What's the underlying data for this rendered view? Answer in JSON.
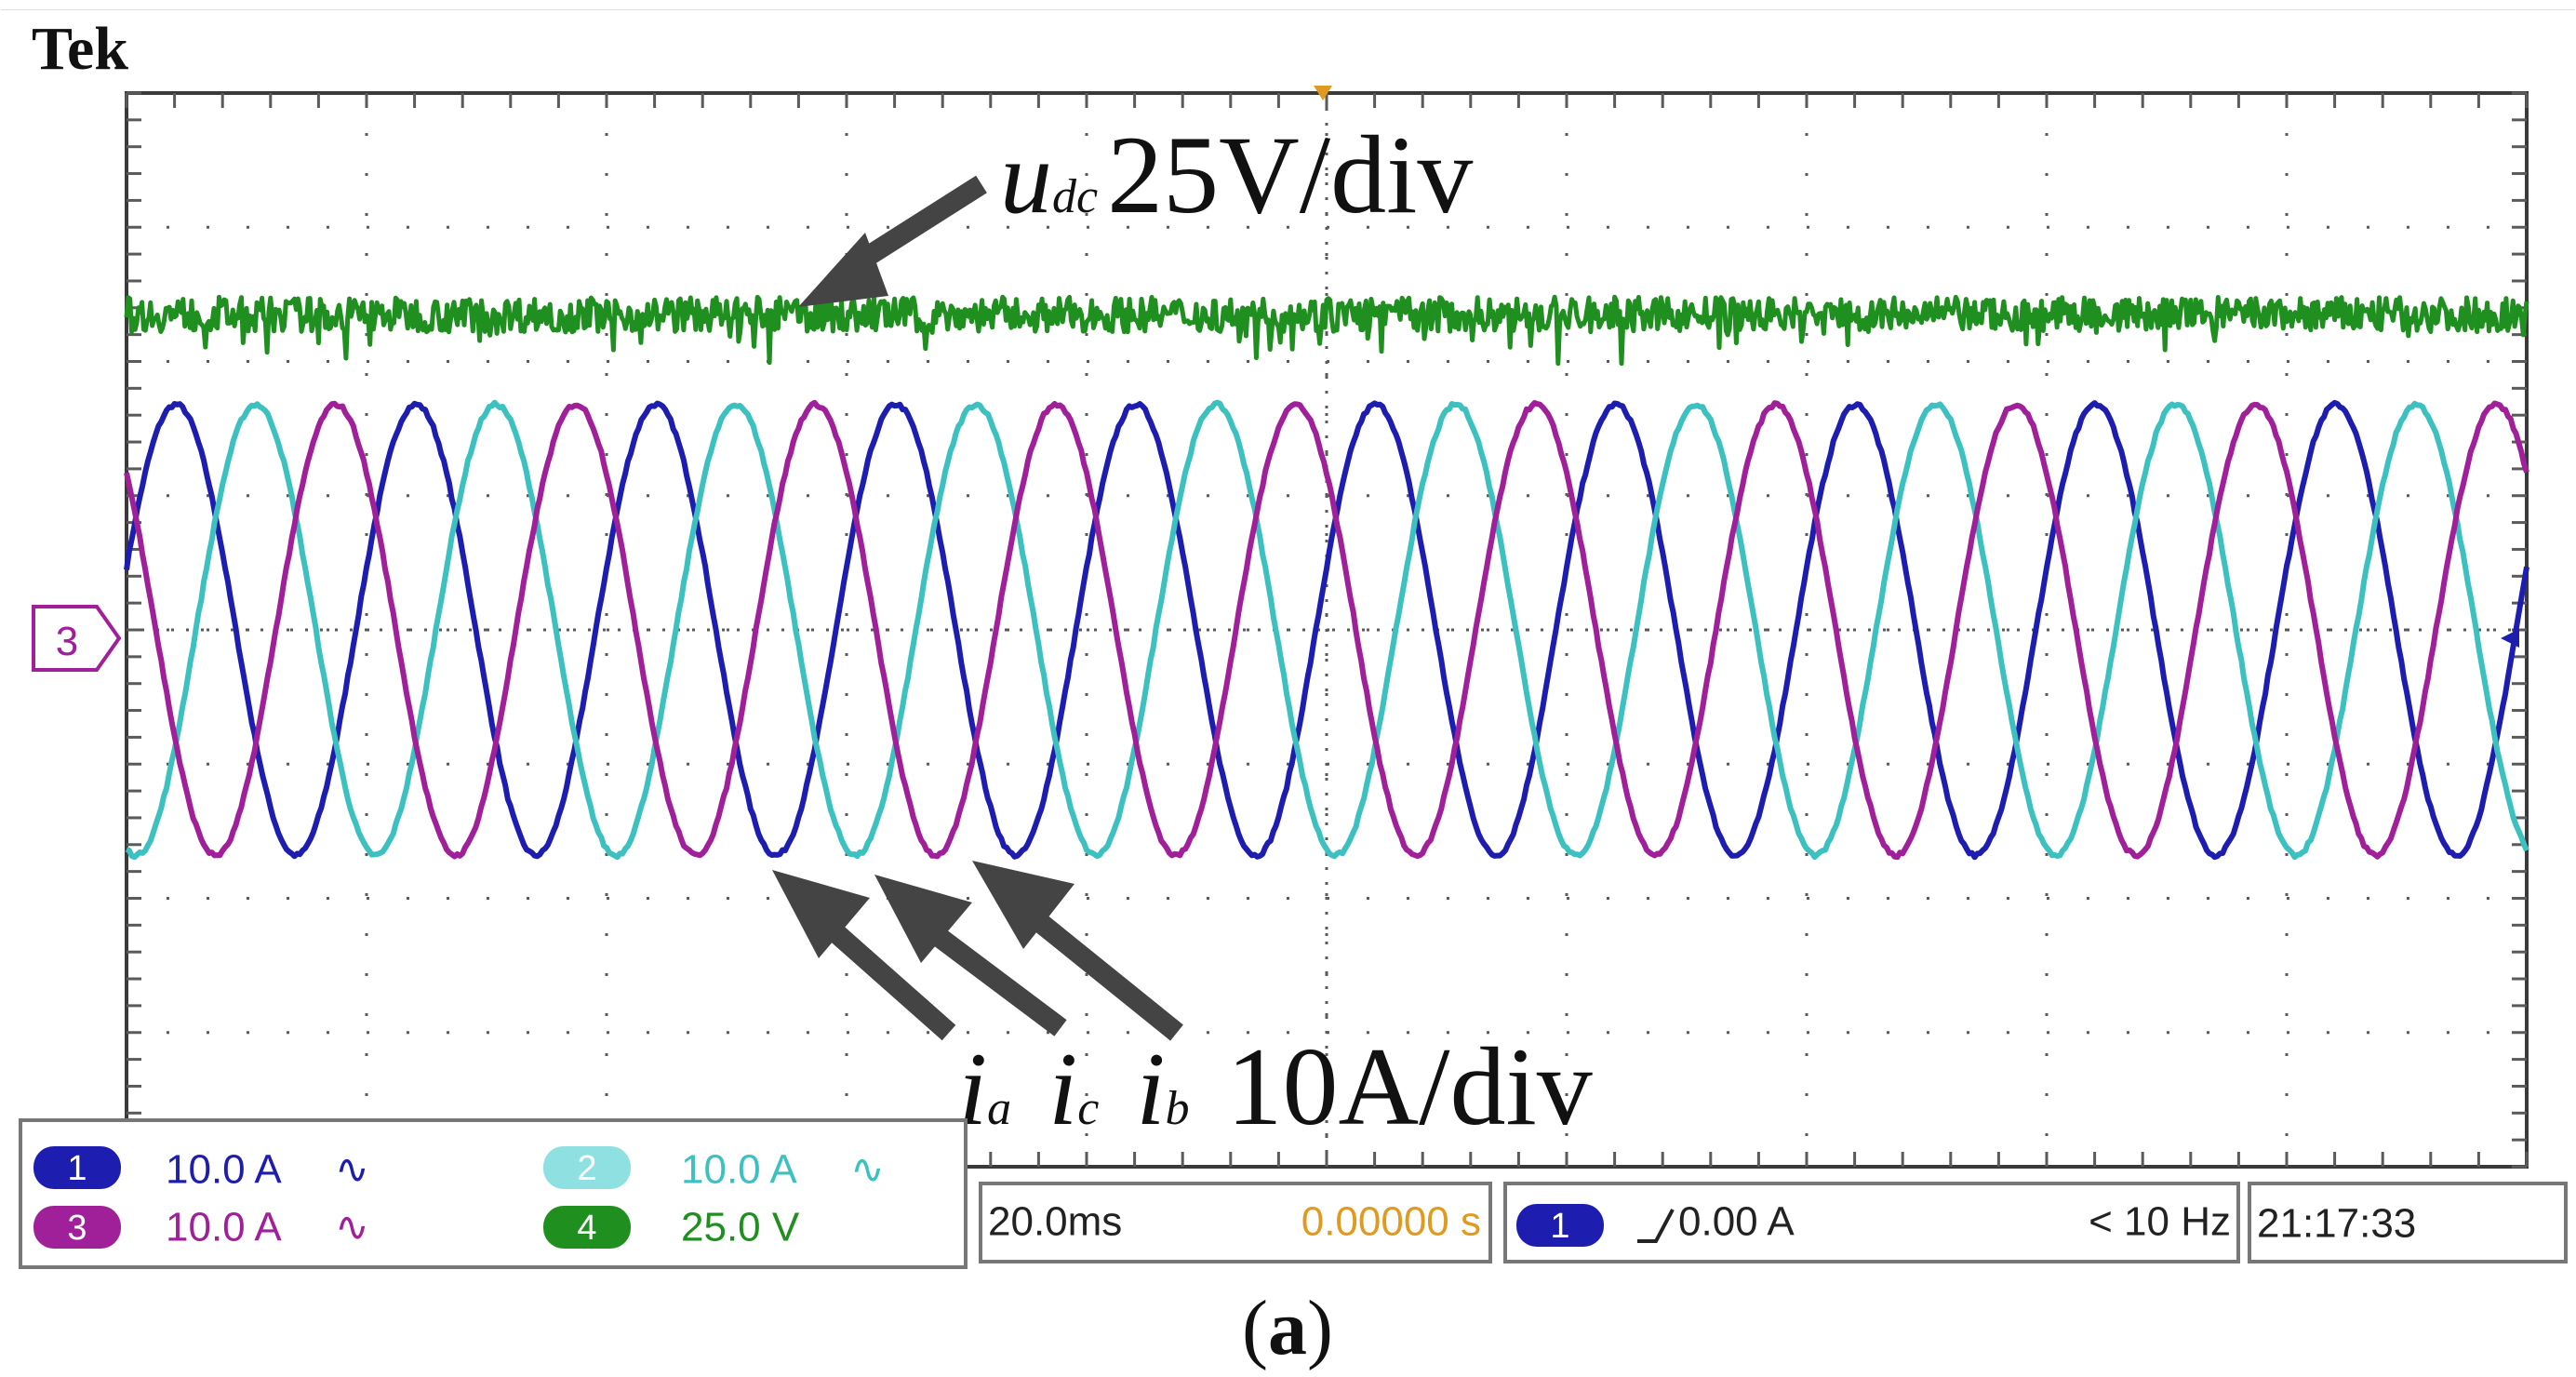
{
  "brand": "Tek",
  "figure_label": "a",
  "annotations": {
    "udc_symbol": "u",
    "udc_subscript": "dc",
    "udc_scale": "25V/div",
    "ia_symbol": "i",
    "ia_subscript": "a",
    "ic_symbol": "i",
    "ic_subscript": "c",
    "ib_symbol": "i",
    "ib_subscript": "b",
    "current_scale": "10A/div"
  },
  "ground_marker": "3",
  "channels": [
    {
      "number": "1",
      "scale": "10.0 A",
      "coupling": "∿",
      "color": "#1d1db0"
    },
    {
      "number": "2",
      "scale": "10.0 A",
      "coupling": "∿",
      "color": "#3cc0c0"
    },
    {
      "number": "3",
      "scale": "10.0 A",
      "coupling": "∿",
      "color": "#a0209a"
    },
    {
      "number": "4",
      "scale": "25.0 V",
      "coupling": "",
      "color": "#1f8f1f"
    }
  ],
  "timebase": {
    "time_per_div": "20.0ms",
    "position": "0.00000 s"
  },
  "trigger": {
    "channel": "1",
    "level": "0.00 A",
    "frequency": "< 10 Hz"
  },
  "clock": "21:17:33",
  "colors": {
    "grid": "#5a5a5a",
    "udc": "#1f8f1f",
    "ia": "#1d1db0",
    "ib": "#a0209a",
    "ic": "#3cc0c0",
    "arrow": "#444444",
    "time_position": "#e09a20",
    "panel_border": "#777777"
  },
  "chart_data": {
    "type": "line",
    "title": "",
    "xlabel": "",
    "ylabel": "",
    "x_divisions": 10,
    "y_divisions": 8,
    "time_per_div_ms": 20,
    "xlim_ms": [
      0,
      200
    ],
    "ylim_div": [
      -4,
      4
    ],
    "series": [
      {
        "name": "udc",
        "channel": 4,
        "scale_per_div": "25V/div",
        "offset_div": 2.35,
        "amplitude_div": 0.0,
        "noise_div": 0.13,
        "frequency_hz": 0,
        "phase_deg": 0
      },
      {
        "name": "ia",
        "channel": 1,
        "scale_per_div": "10A/div",
        "offset_div": 0.0,
        "amplitude_div": 1.68,
        "frequency_hz": 50,
        "phase_deg": 16
      },
      {
        "name": "ib",
        "channel": 3,
        "scale_per_div": "10A/div",
        "offset_div": 0.0,
        "amplitude_div": 1.68,
        "frequency_hz": 50,
        "phase_deg": 136
      },
      {
        "name": "ic",
        "channel": 2,
        "scale_per_div": "10A/div",
        "offset_div": 0.0,
        "amplitude_div": 1.68,
        "frequency_hz": 50,
        "phase_deg": 256
      }
    ]
  }
}
